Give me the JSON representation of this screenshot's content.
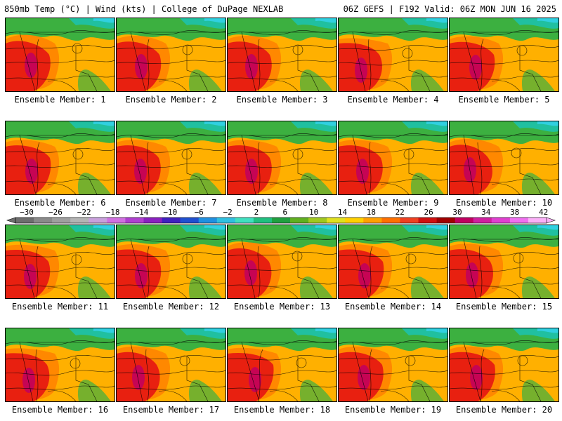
{
  "header": {
    "left": "850mb Temp (°C) | Wind (kts) | College of DuPage NEXLAB",
    "right": "06Z GEFS | F192 Valid: 06Z MON JUN 16 2025"
  },
  "panels": [
    {
      "label": "Ensemble Member: 1"
    },
    {
      "label": "Ensemble Member: 2"
    },
    {
      "label": "Ensemble Member: 3"
    },
    {
      "label": "Ensemble Member: 4"
    },
    {
      "label": "Ensemble Member: 5"
    },
    {
      "label": "Ensemble Member: 6"
    },
    {
      "label": "Ensemble Member: 7"
    },
    {
      "label": "Ensemble Member: 8"
    },
    {
      "label": "Ensemble Member: 9"
    },
    {
      "label": "Ensemble Member: 10"
    },
    {
      "label": "Ensemble Member: 11"
    },
    {
      "label": "Ensemble Member: 12"
    },
    {
      "label": "Ensemble Member: 13"
    },
    {
      "label": "Ensemble Member: 14"
    },
    {
      "label": "Ensemble Member: 15"
    },
    {
      "label": "Ensemble Member: 16"
    },
    {
      "label": "Ensemble Member: 17"
    },
    {
      "label": "Ensemble Member: 18"
    },
    {
      "label": "Ensemble Member: 19"
    },
    {
      "label": "Ensemble Member: 20"
    }
  ],
  "colorbar": {
    "labels": [
      "-30",
      "-26",
      "-22",
      "-18",
      "-14",
      "-10",
      "-6",
      "-2",
      "2",
      "6",
      "10",
      "14",
      "18",
      "22",
      "26",
      "30",
      "34",
      "38",
      "42"
    ],
    "colors": [
      "#6e6e6e",
      "#8a8a8a",
      "#9f9f9f",
      "#b4b4b4",
      "#c9a0dc",
      "#d070e0",
      "#b040d0",
      "#8a20c0",
      "#4020c0",
      "#2050d0",
      "#2090e0",
      "#30c0e0",
      "#40e0c0",
      "#20c080",
      "#20a040",
      "#60b020",
      "#a0c820",
      "#e0e020",
      "#ffd000",
      "#ffa000",
      "#ff7000",
      "#f04020",
      "#d01010",
      "#a00000",
      "#c00060",
      "#d020a0",
      "#e040d0",
      "#f070f0",
      "#fbb0f8"
    ]
  },
  "map_colors": {
    "hot_core": "#c00060",
    "red": "#e82010",
    "orange": "#ff8800",
    "yellow_orange": "#ffb000",
    "green": "#3cb040",
    "teal": "#20c0a0",
    "cyan": "#30d0e0"
  }
}
